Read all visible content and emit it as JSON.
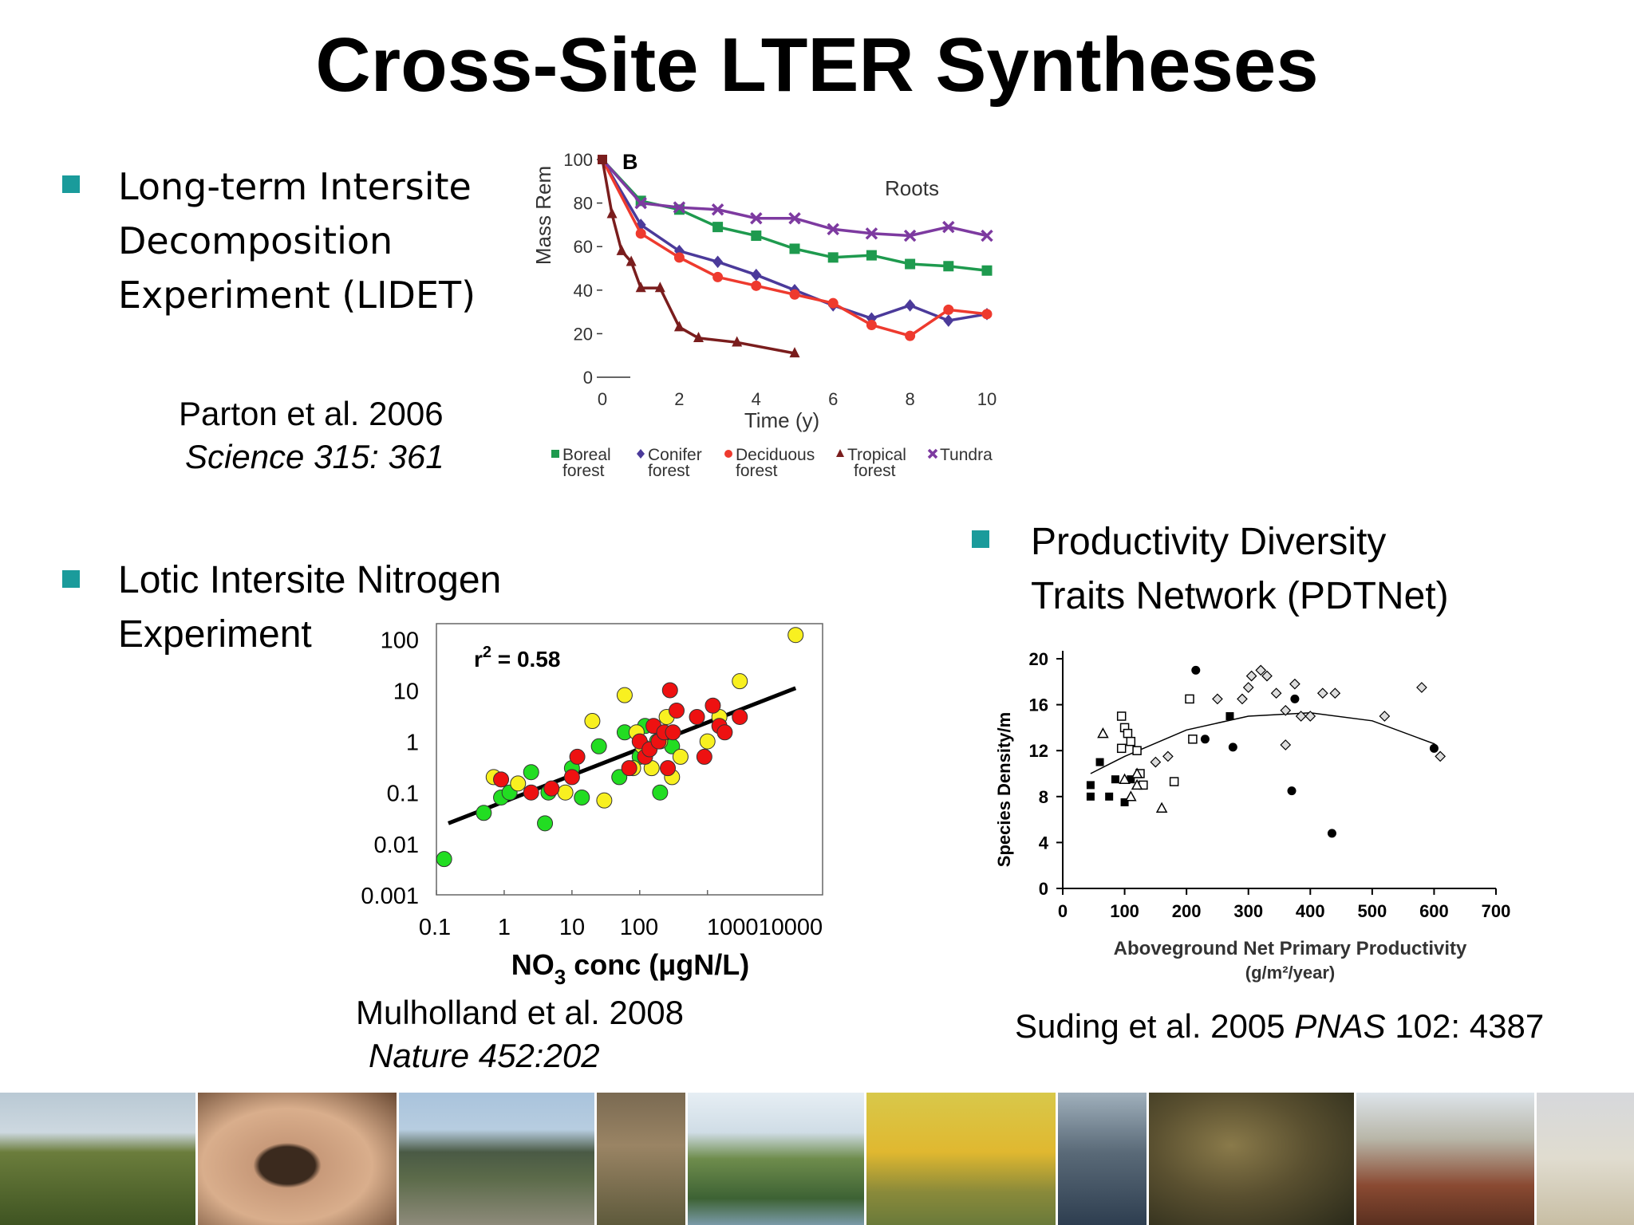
{
  "title": "Cross-Site LTER Syntheses",
  "bullets": {
    "lidet": [
      "Long-term Intersite",
      "Decomposition",
      "Experiment (LIDET)"
    ],
    "lint": [
      "Lotic Intersite Nitrogen",
      "Experiment"
    ],
    "pdtnet": [
      "Productivity Diversity",
      "Traits Network (PDTNet)"
    ]
  },
  "citations": {
    "parton": {
      "line1": "Parton et al. 2006",
      "line2": "Science 315: 361"
    },
    "mulholland": {
      "line1": "Mulholland et al. 2008",
      "line2": "Nature 452:202"
    },
    "suding": {
      "authors": "Suding et al. 2005 ",
      "journal": "PNAS",
      "rest": " 102: 4387"
    }
  },
  "colors": {
    "bullet": "#1a9b9b",
    "boreal": "#1e9a4e",
    "conifer": "#4b3a9a",
    "deciduous": "#ee3a2e",
    "tropical": "#7a1d1d",
    "tundra": "#7d3aa0",
    "lint_green": "#22dd22",
    "lint_yellow": "#f8f020",
    "lint_red": "#ee1111"
  },
  "chart_data": [
    {
      "type": "line",
      "panel_label": "B",
      "annotation": "Roots",
      "xlabel": "Time (y)",
      "ylabel": "Mass Rem",
      "xlim": [
        0,
        10
      ],
      "ylim": [
        0,
        100
      ],
      "xticks": [
        "0",
        "2",
        "4",
        "6",
        "8",
        "10"
      ],
      "yticks": [
        "0",
        "20",
        "40",
        "60",
        "80",
        "100"
      ],
      "legend": "bottom",
      "series": [
        {
          "name": "Boreal forest",
          "label1": "Boreal",
          "label2": "forest",
          "marker": "square",
          "color_key": "boreal",
          "x": [
            0,
            1,
            2,
            3,
            4,
            5,
            6,
            7,
            8,
            9,
            10
          ],
          "y": [
            100,
            81,
            77,
            69,
            65,
            59,
            55,
            56,
            52,
            51,
            49
          ]
        },
        {
          "name": "Conifer forest",
          "label1": "Conifer",
          "label2": "forest",
          "marker": "diamond",
          "color_key": "conifer",
          "x": [
            0,
            1,
            2,
            3,
            4,
            5,
            6,
            7,
            8,
            9,
            10
          ],
          "y": [
            100,
            70,
            58,
            53,
            47,
            40,
            33,
            27,
            33,
            26,
            29
          ]
        },
        {
          "name": "Deciduous forest",
          "label1": "Deciduous",
          "label2": "forest",
          "marker": "circle",
          "color_key": "deciduous",
          "x": [
            0,
            1,
            2,
            3,
            4,
            5,
            6,
            7,
            8,
            9,
            10
          ],
          "y": [
            100,
            66,
            55,
            46,
            42,
            38,
            34,
            24,
            19,
            31,
            29
          ]
        },
        {
          "name": "Tropical forest",
          "label1": "Tropical",
          "label2": "forest",
          "marker": "triangle",
          "color_key": "tropical",
          "x": [
            0,
            0.25,
            0.5,
            0.75,
            1,
            1.5,
            2,
            2.5,
            3.5,
            5
          ],
          "y": [
            100,
            75,
            58,
            53,
            41,
            41,
            23,
            18,
            16,
            11
          ]
        },
        {
          "name": "Tundra",
          "label1": "Tundra",
          "label2": "",
          "marker": "x",
          "color_key": "tundra",
          "x": [
            0,
            1,
            2,
            3,
            4,
            5,
            6,
            7,
            8,
            9,
            10
          ],
          "y": [
            100,
            80,
            78,
            77,
            73,
            73,
            68,
            66,
            65,
            69,
            65
          ]
        }
      ]
    },
    {
      "type": "scatter",
      "annotation": "r2 = 0.58",
      "annotation_r": "r",
      "annotation_sup": "2",
      "annotation_rest": " = 0.58",
      "xlabel_main": "NO",
      "xlabel_sub": "3",
      "xlabel_rest": " conc (μgN/L)",
      "ylabel": "",
      "xscale": "log",
      "yscale": "log",
      "xlim": [
        0.1,
        50000
      ],
      "ylim": [
        0.001,
        200
      ],
      "xticks": [
        "0.1",
        "1",
        "10",
        "100",
        "100010000"
      ],
      "yticks": [
        "100",
        "10",
        "1",
        "0.1",
        "0.01",
        "0.001"
      ],
      "regression": [
        [
          0.15,
          0.025
        ],
        [
          20000,
          11
        ]
      ],
      "points": {
        "green": [
          [
            0.13,
            0.005
          ],
          [
            0.5,
            0.04
          ],
          [
            0.9,
            0.08
          ],
          [
            1.2,
            0.1
          ],
          [
            2.5,
            0.25
          ],
          [
            4,
            0.025
          ],
          [
            4.5,
            0.1
          ],
          [
            10,
            0.3
          ],
          [
            14,
            0.08
          ],
          [
            25,
            0.8
          ],
          [
            50,
            0.2
          ],
          [
            60,
            1.5
          ],
          [
            100,
            0.5
          ],
          [
            200,
            0.1
          ],
          [
            300,
            0.8
          ],
          [
            180,
            1
          ],
          [
            120,
            2
          ]
        ],
        "yellow": [
          [
            0.7,
            0.2
          ],
          [
            1.6,
            0.15
          ],
          [
            8,
            0.1
          ],
          [
            20,
            2.5
          ],
          [
            30,
            0.07
          ],
          [
            60,
            8
          ],
          [
            80,
            0.3
          ],
          [
            90,
            1.5
          ],
          [
            110,
            0.8
          ],
          [
            150,
            0.3
          ],
          [
            200,
            1
          ],
          [
            250,
            3
          ],
          [
            300,
            0.2
          ],
          [
            400,
            0.5
          ],
          [
            1000,
            1
          ],
          [
            1500,
            3
          ],
          [
            3000,
            15
          ],
          [
            20000,
            120
          ]
        ],
        "red": [
          [
            0.9,
            0.18
          ],
          [
            2.5,
            0.1
          ],
          [
            5,
            0.12
          ],
          [
            10,
            0.2
          ],
          [
            12,
            0.5
          ],
          [
            70,
            0.3
          ],
          [
            100,
            1
          ],
          [
            120,
            0.5
          ],
          [
            140,
            0.7
          ],
          [
            160,
            2
          ],
          [
            190,
            1
          ],
          [
            230,
            1.5
          ],
          [
            260,
            0.3
          ],
          [
            280,
            10
          ],
          [
            310,
            1.5
          ],
          [
            350,
            4
          ],
          [
            700,
            3
          ],
          [
            900,
            0.5
          ],
          [
            1200,
            5
          ],
          [
            1500,
            2
          ],
          [
            1800,
            1.5
          ],
          [
            3000,
            3
          ]
        ]
      }
    },
    {
      "type": "scatter",
      "xlabel": "Aboveground Net Primary Productivity",
      "xlabel2": "(g/m²/year)",
      "ylabel": "Species Density/m",
      "xlim": [
        0,
        700
      ],
      "ylim": [
        0,
        20
      ],
      "xticks": [
        "0",
        "100",
        "200",
        "300",
        "400",
        "500",
        "600",
        "700"
      ],
      "yticks": [
        "0",
        "4",
        "8",
        "12",
        "16",
        "20"
      ],
      "curve": [
        [
          45,
          10
        ],
        [
          100,
          11.5
        ],
        [
          200,
          13.8
        ],
        [
          300,
          15
        ],
        [
          400,
          15.3
        ],
        [
          500,
          14.6
        ],
        [
          600,
          12.6
        ],
        [
          605,
          12.4
        ]
      ],
      "points": {
        "filled_square": [
          [
            45,
            9
          ],
          [
            45,
            8
          ],
          [
            60,
            11
          ],
          [
            75,
            8
          ],
          [
            85,
            9.5
          ],
          [
            100,
            7.5
          ],
          [
            110,
            9.5
          ],
          [
            270,
            15
          ]
        ],
        "filled_circle": [
          [
            215,
            19
          ],
          [
            230,
            13
          ],
          [
            275,
            12.3
          ],
          [
            370,
            8.5
          ],
          [
            375,
            16.5
          ],
          [
            435,
            4.8
          ],
          [
            600,
            12.2
          ]
        ],
        "open_square": [
          [
            95,
            15
          ],
          [
            100,
            14
          ],
          [
            105,
            13.5
          ],
          [
            110,
            12.8
          ],
          [
            95,
            12.2
          ],
          [
            120,
            12
          ],
          [
            125,
            10
          ],
          [
            130,
            9
          ],
          [
            180,
            9.3
          ],
          [
            205,
            16.5
          ],
          [
            210,
            13
          ]
        ],
        "open_triangle": [
          [
            65,
            13.5
          ],
          [
            100,
            9.5
          ],
          [
            110,
            8
          ],
          [
            120,
            9
          ],
          [
            160,
            7
          ],
          [
            120,
            10
          ]
        ],
        "open_diamond": [
          [
            150,
            11
          ],
          [
            170,
            11.5
          ],
          [
            250,
            16.5
          ],
          [
            290,
            16.5
          ],
          [
            300,
            17.5
          ],
          [
            305,
            18.5
          ],
          [
            320,
            19
          ],
          [
            330,
            18.5
          ],
          [
            345,
            17
          ],
          [
            360,
            15.5
          ],
          [
            360,
            12.5
          ],
          [
            375,
            17.8
          ],
          [
            385,
            15
          ],
          [
            400,
            15
          ],
          [
            420,
            17
          ],
          [
            440,
            17
          ],
          [
            520,
            15
          ],
          [
            580,
            17.5
          ],
          [
            610,
            11.5
          ]
        ]
      }
    }
  ]
}
